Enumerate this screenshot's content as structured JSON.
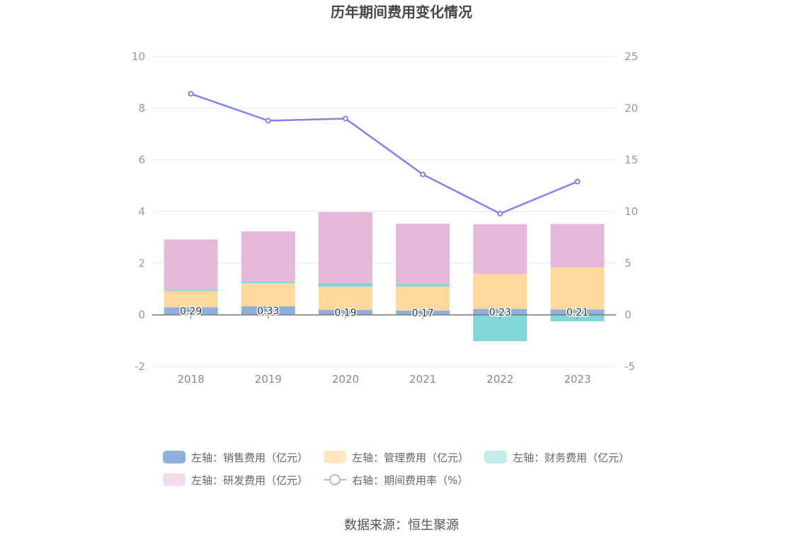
{
  "chart_data": {
    "type": "bar",
    "title": "历年期间费用变化情况",
    "categories": [
      "2018",
      "2019",
      "2020",
      "2021",
      "2022",
      "2023"
    ],
    "left_axis": {
      "ticks": [
        "10",
        "8",
        "6",
        "4",
        "2",
        "0",
        "-2"
      ],
      "range": [
        -2,
        10
      ]
    },
    "right_axis": {
      "ticks": [
        "25",
        "20",
        "15",
        "10",
        "5",
        "0",
        "-5"
      ],
      "range": [
        -5,
        25
      ]
    },
    "grid": true,
    "legend_position": "bottom",
    "series": [
      {
        "name": "左轴：销售费用（亿元）",
        "kind": "bar",
        "axis": "left",
        "color": "#8eb0dc",
        "values": [
          0.29,
          0.33,
          0.19,
          0.17,
          0.23,
          0.21
        ],
        "labels": [
          "0.29",
          "0.33",
          "0.19",
          "0.17",
          "0.23",
          "0.21"
        ]
      },
      {
        "name": "左轴：管理费用（亿元）",
        "kind": "bar",
        "axis": "left",
        "color": "#ffd99c",
        "values": [
          0.63,
          0.9,
          0.9,
          0.93,
          1.35,
          1.62
        ]
      },
      {
        "name": "左轴：财务费用（亿元）",
        "kind": "bar",
        "axis": "left",
        "color": "#80d6d8",
        "values": [
          0.04,
          0.06,
          0.15,
          0.1,
          -1.02,
          -0.25
        ]
      },
      {
        "name": "左轴：研发费用（亿元）",
        "kind": "bar",
        "axis": "left",
        "color": "#e6b9da",
        "values": [
          1.96,
          1.94,
          2.74,
          2.33,
          1.93,
          1.69
        ]
      },
      {
        "name": "右轴：期间费用率（%）",
        "kind": "line",
        "axis": "right",
        "color": "#7f83f1",
        "values": [
          21.4,
          18.8,
          19.0,
          13.6,
          9.8,
          12.9
        ]
      }
    ]
  },
  "legend": {
    "items": [
      {
        "label": "左轴：销售费用（亿元）",
        "color": "#8eb0dc"
      },
      {
        "label": "左轴：管理费用（亿元）",
        "color": "#ffe7c1"
      },
      {
        "label": "左轴：财务费用（亿元）",
        "color": "#c2ebec"
      },
      {
        "label": "左轴：研发费用（亿元）",
        "color": "#f3dbec"
      },
      {
        "label": "右轴：期间费用率（%）",
        "color": "#b2b4f7"
      }
    ]
  },
  "source": "数据来源：恒生聚源"
}
